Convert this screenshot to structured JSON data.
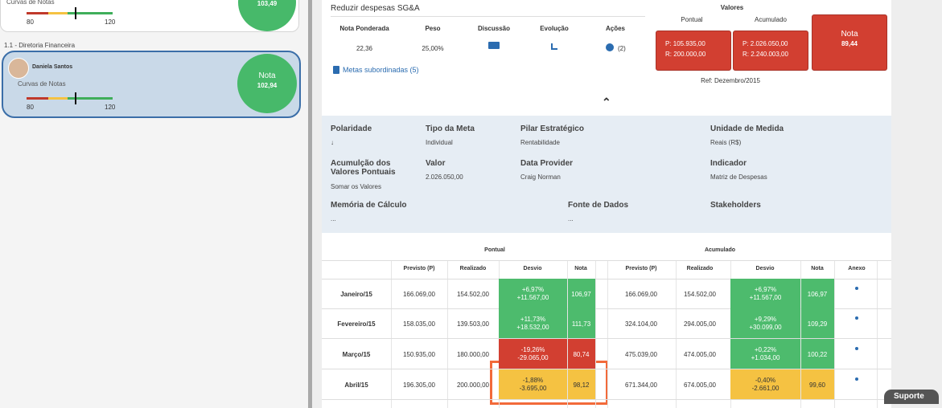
{
  "sidebar": {
    "cards": [
      {
        "subtitle": "Curvas de Notas",
        "scale_min": "80",
        "scale_max": "120",
        "score": "103,49"
      },
      {
        "name": "Daniela Santos",
        "subtitle": "Curvas de Notas",
        "scale_min": "80",
        "scale_max": "120",
        "score_label": "Nota",
        "score": "102,94"
      }
    ],
    "section": "1.1 - Diretoria Financeira"
  },
  "goal": {
    "title": "Reduzir despesas SG&A",
    "headers": [
      "Nota Ponderada",
      "Peso",
      "Discussão",
      "Evolução",
      "Ações"
    ],
    "values": [
      "22,36",
      "25,00%"
    ],
    "actions_count": "(2)",
    "subordinates": "Metas subordinadas (5)"
  },
  "values_panel": {
    "title": "Valores",
    "pontual_label": "Pontual",
    "acumulado_label": "Acumulado",
    "pontual": [
      "P: 105.935,00",
      "R: 200.000,00"
    ],
    "acumulado": [
      "P: 2.026.050,00",
      "R: 2.240.003,00"
    ],
    "nota_label": "Nota",
    "nota": "89,44",
    "ref": "Ref: Dezembro/2015"
  },
  "details": {
    "fields": [
      {
        "label": "Polaridade",
        "value": "↓"
      },
      {
        "label": "Tipo da Meta",
        "value": "Individual"
      },
      {
        "label": "Pilar Estratégico",
        "value": "Rentabilidade"
      },
      {
        "label": "Unidade de Medida",
        "value": "Reais (R$)"
      },
      {
        "label": "Acumulção dos Valores Pontuais",
        "value": "Somar os Valores"
      },
      {
        "label": "Valor",
        "value": "2.026.050,00"
      },
      {
        "label": "Data Provider",
        "value": "Craig Norman"
      },
      {
        "label": "Indicador",
        "value": "Matriz de Despesas"
      },
      {
        "label": "Memória de Cálculo",
        "value": "..."
      },
      {
        "label": "Fonte de Dados",
        "value": "..."
      },
      {
        "label": "Stakeholders"
      }
    ]
  },
  "table": {
    "groups": [
      "Pontual",
      "Acumulado"
    ],
    "columns": [
      "Previsto (P)",
      "Realizado",
      "Desvio",
      "Nota",
      "Previsto (P)",
      "Realizado",
      "Desvio",
      "Nota",
      "Anexo"
    ],
    "rows": [
      {
        "month": "Janeiro/15",
        "pontual": [
          "166.069,00",
          "154.502,00",
          "+6,97%",
          "+11.567,00",
          "106,97"
        ],
        "pontual_color": "#4dbb6d",
        "acumulado": [
          "166.069,00",
          "154.502,00",
          "+6,97%",
          "+11.567,00",
          "106,97"
        ],
        "acumulado_color": "#4dbb6d"
      },
      {
        "month": "Fevereiro/15",
        "pontual": [
          "158.035,00",
          "139.503,00",
          "+11,73%",
          "+18.532,00",
          "111,73"
        ],
        "pontual_color": "#4dbb6d",
        "acumulado": [
          "324.104,00",
          "294.005,00",
          "+9,29%",
          "+30.099,00",
          "109,29"
        ],
        "acumulado_color": "#4dbb6d"
      },
      {
        "month": "Março/15",
        "pontual": [
          "150.935,00",
          "180.000,00",
          "-19,26%",
          "-29.065,00",
          "80,74"
        ],
        "pontual_color": "#d23f31",
        "acumulado": [
          "475.039,00",
          "474.005,00",
          "+0,22%",
          "+1.034,00",
          "100,22"
        ],
        "acumulado_color": "#4dbb6d"
      },
      {
        "month": "Abril/15",
        "pontual": [
          "196.305,00",
          "200.000,00",
          "-1,88%",
          "-3.695,00",
          "98,12"
        ],
        "pontual_color": "#f5c242",
        "acumulado": [
          "671.344,00",
          "674.005,00",
          "-0,40%",
          "-2.661,00",
          "99,60"
        ],
        "acumulado_color": "#f5c242"
      }
    ]
  },
  "support": "Suporte"
}
